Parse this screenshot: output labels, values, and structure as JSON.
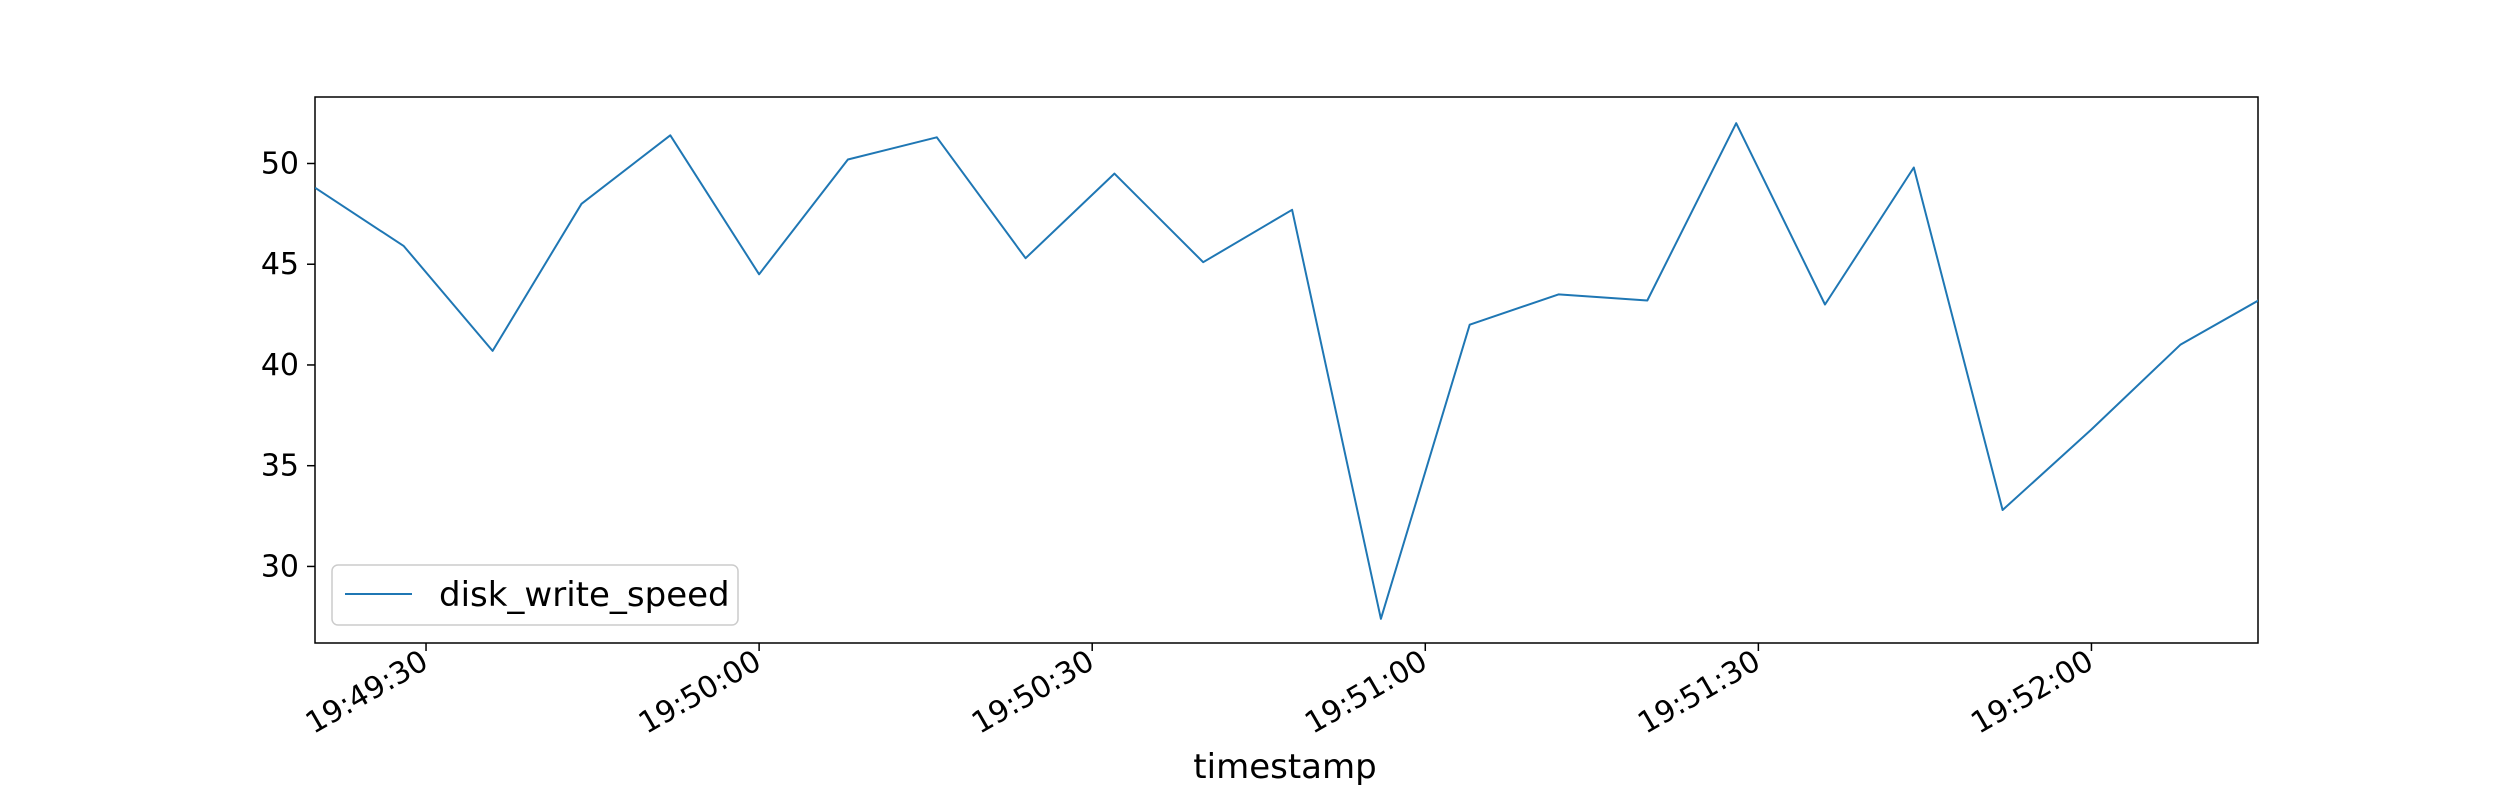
{
  "chart_data": {
    "type": "line",
    "title": "",
    "xlabel": "timestamp",
    "ylabel": "",
    "xlim": [
      "19:49:20",
      "19:52:15"
    ],
    "ylim": [
      26.2,
      53.3
    ],
    "grid": false,
    "legend_position": "lower-left",
    "x_ticks": [
      "19:49:30",
      "19:50:00",
      "19:50:30",
      "19:51:00",
      "19:51:30",
      "19:52:00"
    ],
    "y_ticks": [
      30,
      35,
      40,
      45,
      50
    ],
    "series": [
      {
        "name": "disk_write_speed",
        "color": "#1f77b4",
        "x": [
          "19:49:20",
          "19:49:28",
          "19:49:36",
          "19:49:44",
          "19:49:52",
          "19:50:00",
          "19:50:08",
          "19:50:16",
          "19:50:24",
          "19:50:32",
          "19:50:40",
          "19:50:48",
          "19:50:56",
          "19:51:04",
          "19:51:12",
          "19:51:20",
          "19:51:28",
          "19:51:36",
          "19:51:44",
          "19:51:52",
          "19:52:00",
          "19:52:08",
          "19:52:16"
        ],
        "values": [
          48.8,
          45.9,
          40.7,
          48.0,
          51.4,
          44.5,
          50.2,
          51.3,
          45.3,
          49.5,
          45.1,
          47.7,
          27.4,
          42.0,
          43.5,
          43.2,
          52.0,
          43.0,
          49.8,
          32.8,
          36.8,
          41.0,
          43.5
        ]
      }
    ]
  }
}
